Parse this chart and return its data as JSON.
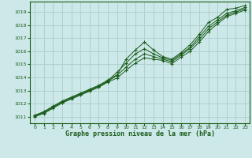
{
  "title": "Graphe pression niveau de la mer (hPa)",
  "bg_color": "#cce8e8",
  "grid_color": "#b0d0d0",
  "line_color": "#1a5c1a",
  "xlim": [
    -0.5,
    23.5
  ],
  "ylim": [
    1010.5,
    1019.8
  ],
  "yticks": [
    1011,
    1012,
    1013,
    1014,
    1015,
    1016,
    1017,
    1018,
    1019
  ],
  "xticks": [
    0,
    1,
    2,
    3,
    4,
    5,
    6,
    7,
    8,
    9,
    10,
    11,
    12,
    13,
    14,
    15,
    16,
    17,
    18,
    19,
    20,
    21,
    22,
    23
  ],
  "series": [
    [
      1011.1,
      1011.4,
      1011.8,
      1012.2,
      1012.5,
      1012.8,
      1013.1,
      1013.4,
      1013.8,
      1014.2,
      1015.4,
      1016.1,
      1016.7,
      1016.1,
      1015.6,
      1015.4,
      1015.9,
      1016.5,
      1017.3,
      1018.2,
      1018.6,
      1019.2,
      1019.3,
      1019.5
    ],
    [
      1011.1,
      1011.35,
      1011.75,
      1012.15,
      1012.45,
      1012.75,
      1013.05,
      1013.35,
      1013.75,
      1014.4,
      1015.1,
      1015.8,
      1016.2,
      1015.8,
      1015.5,
      1015.3,
      1015.8,
      1016.3,
      1017.1,
      1017.9,
      1018.4,
      1018.9,
      1019.1,
      1019.35
    ],
    [
      1011.05,
      1011.3,
      1011.7,
      1012.1,
      1012.4,
      1012.7,
      1013.0,
      1013.3,
      1013.7,
      1014.15,
      1014.8,
      1015.4,
      1015.8,
      1015.6,
      1015.4,
      1015.2,
      1015.7,
      1016.2,
      1016.9,
      1017.7,
      1018.25,
      1018.75,
      1019.0,
      1019.25
    ],
    [
      1011.0,
      1011.25,
      1011.65,
      1012.05,
      1012.35,
      1012.65,
      1012.95,
      1013.25,
      1013.65,
      1013.95,
      1014.55,
      1015.1,
      1015.5,
      1015.4,
      1015.3,
      1015.05,
      1015.55,
      1016.0,
      1016.7,
      1017.5,
      1018.1,
      1018.65,
      1018.9,
      1019.15
    ]
  ],
  "x_series": [
    0,
    1,
    2,
    3,
    4,
    5,
    6,
    7,
    8,
    9,
    10,
    11,
    12,
    13,
    14,
    15,
    16,
    17,
    18,
    19,
    20,
    21,
    22,
    23
  ]
}
